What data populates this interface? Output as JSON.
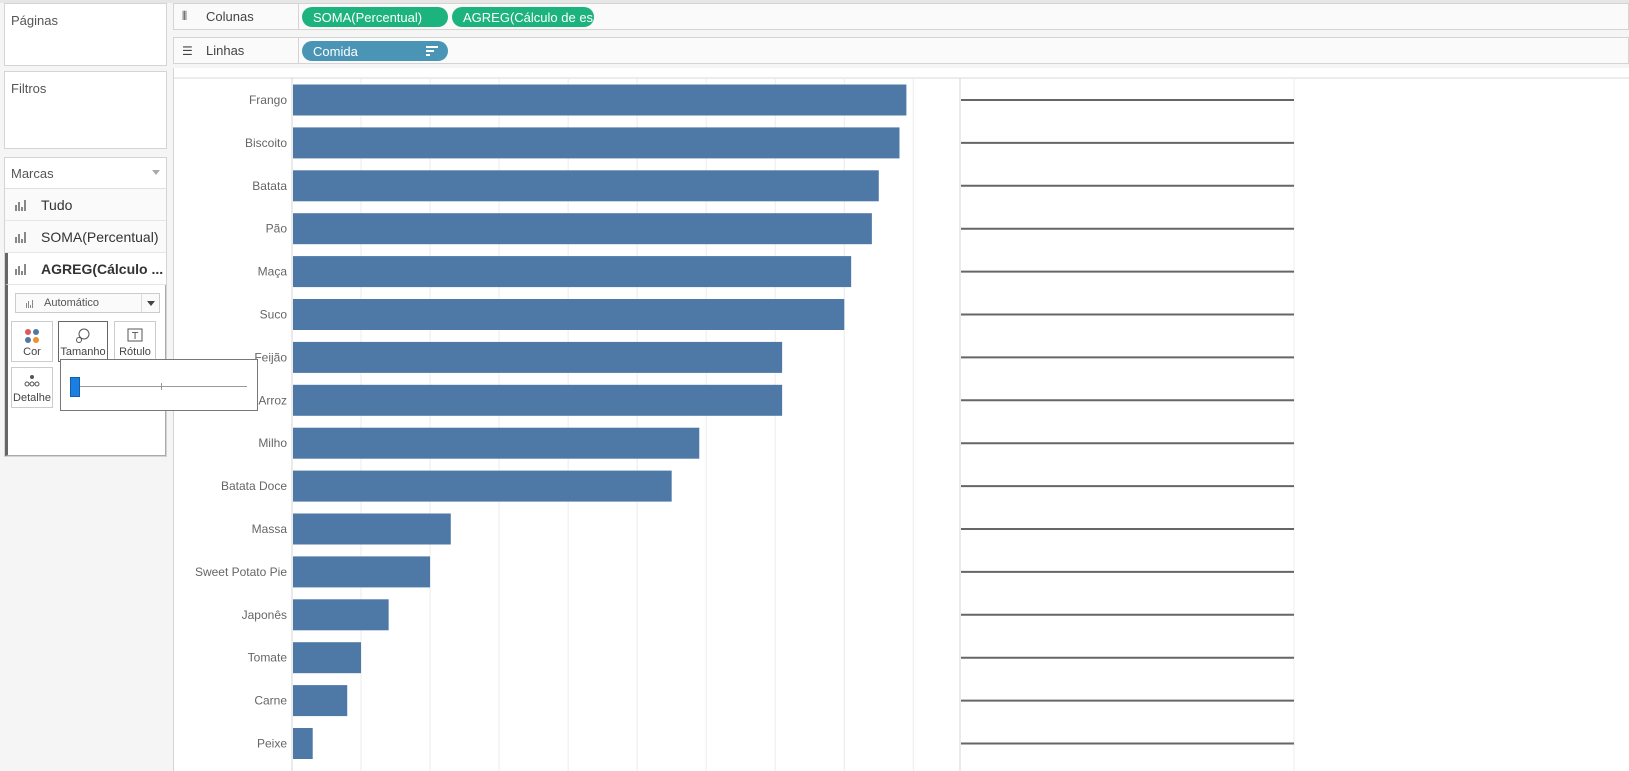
{
  "left_panel": {
    "pages_title": "Páginas",
    "filters_title": "Filtros",
    "marks_title": "Marcas",
    "mark_layers": [
      "Tudo",
      "SOMA(Percentual)",
      "AGREG(Cálculo ..."
    ],
    "mark_type": "Automático",
    "controls": [
      "Cor",
      "Tamanho",
      "Rótulo",
      "Detalhe"
    ]
  },
  "shelves": {
    "columns_label": "Colunas",
    "rows_label": "Linhas",
    "column_pills": [
      "SOMA(Percentual)",
      "AGREG(Cálculo de es.."
    ],
    "row_pills": [
      "Comida"
    ]
  },
  "colors": {
    "bar": "#4e79a7",
    "pill_green": "#1db37f",
    "pill_blue": "#4a95b5"
  },
  "chart_data": {
    "type": "bar",
    "categories": [
      "Frango",
      "Biscoito",
      "Batata",
      "Pão",
      "Maça",
      "Suco",
      "Feijão",
      "Arroz",
      "Milho",
      "Batata Doce",
      "Massa",
      "Sweet Potato Pie",
      "Japonês",
      "Tomate",
      "Carne",
      "Peixe"
    ],
    "values": [
      8.9,
      8.8,
      8.5,
      8.4,
      8.1,
      8.0,
      7.1,
      7.1,
      5.9,
      5.5,
      2.3,
      2.0,
      1.4,
      1.0,
      0.8,
      0.3
    ],
    "x_range": [
      0,
      9.3
    ],
    "grid": true,
    "second_pane": "horizontal line per category"
  }
}
